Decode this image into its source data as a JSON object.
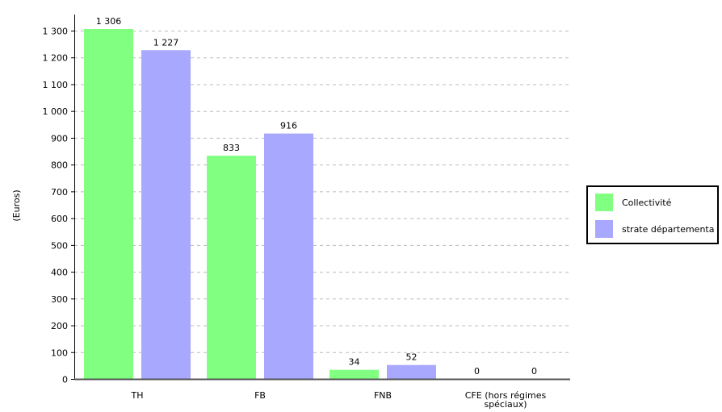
{
  "chart_data": {
    "type": "bar",
    "categories": [
      "TH",
      "FB",
      "FNB",
      "CFE (hors régimes spéciaux)"
    ],
    "category_lines": [
      [
        "TH"
      ],
      [
        "FB"
      ],
      [
        "FNB"
      ],
      [
        "CFE (hors régimes",
        "spéciaux)"
      ]
    ],
    "series": [
      {
        "name": "Collectivité",
        "values": [
          1306,
          833,
          34,
          0
        ],
        "value_labels": [
          "1 306",
          "833",
          "34",
          "0"
        ],
        "color": "#80ff80"
      },
      {
        "name": "strate départementa",
        "values": [
          1227,
          916,
          52,
          0
        ],
        "value_labels": [
          "1 227",
          "916",
          "52",
          "0"
        ],
        "color": "#a8a8ff"
      }
    ],
    "ylabel": "(Euros)",
    "ylim": [
      0,
      1300
    ],
    "yticks": [
      0,
      100,
      200,
      300,
      400,
      500,
      600,
      700,
      800,
      900,
      1000,
      1100,
      1200,
      1300
    ],
    "ytick_labels": [
      "0",
      "100",
      "200",
      "300",
      "400",
      "500",
      "600",
      "700",
      "800",
      "900",
      "1 000",
      "1 100",
      "1 200",
      "1 300"
    ],
    "grid": true,
    "legend_position": "right"
  }
}
